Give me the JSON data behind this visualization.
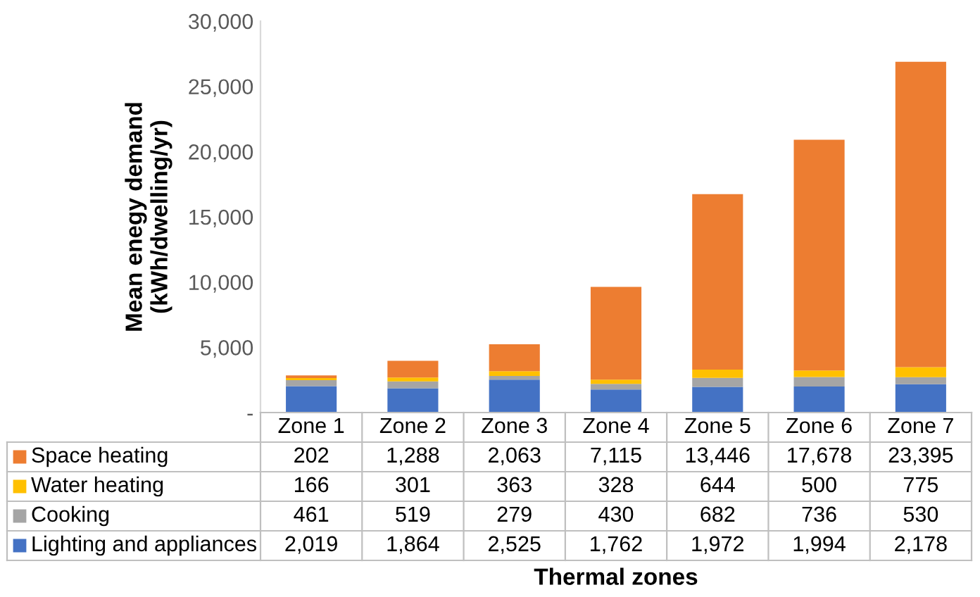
{
  "chart_data": {
    "type": "bar",
    "stacked": true,
    "annotations": [
      "Thermal zones"
    ],
    "ylabel": "Mean enegy demand\n(kWh/dwelling/yr)",
    "categories": [
      "Zone 1",
      "Zone 2",
      "Zone 3",
      "Zone 4",
      "Zone 5",
      "Zone 6",
      "Zone 7"
    ],
    "series": [
      {
        "name": "Lighting and appliances",
        "color": "#4472c4",
        "values": [
          2019,
          1864,
          2525,
          1762,
          1972,
          1994,
          2178
        ],
        "value_labels": [
          "2,019",
          "1,864",
          "2,525",
          "1,762",
          "1,972",
          "1,994",
          "2,178"
        ]
      },
      {
        "name": "Cooking",
        "color": "#a5a5a5",
        "values": [
          461,
          519,
          279,
          430,
          682,
          736,
          530
        ],
        "value_labels": [
          "461",
          "519",
          "279",
          "430",
          "682",
          "736",
          "530"
        ]
      },
      {
        "name": "Water heating",
        "color": "#ffc000",
        "values": [
          166,
          301,
          363,
          328,
          644,
          500,
          775
        ],
        "value_labels": [
          "166",
          "301",
          "363",
          "328",
          "644",
          "500",
          "775"
        ]
      },
      {
        "name": "Space heating",
        "color": "#ed7d31",
        "values": [
          202,
          1288,
          2063,
          7115,
          13446,
          17678,
          23395
        ],
        "value_labels": [
          "202",
          "1,288",
          "2,063",
          "7,115",
          "13,446",
          "17,678",
          "23,395"
        ]
      }
    ],
    "ylim": [
      0,
      30000
    ],
    "yticks": [
      {
        "value": 0,
        "label": "-"
      },
      {
        "value": 5000,
        "label": "5,000"
      },
      {
        "value": 10000,
        "label": "10,000"
      },
      {
        "value": 15000,
        "label": "15,000"
      },
      {
        "value": 20000,
        "label": "20,000"
      },
      {
        "value": 25000,
        "label": "25,000"
      },
      {
        "value": 30000,
        "label": "30,000"
      }
    ],
    "legend": "bottom",
    "grid": false
  }
}
